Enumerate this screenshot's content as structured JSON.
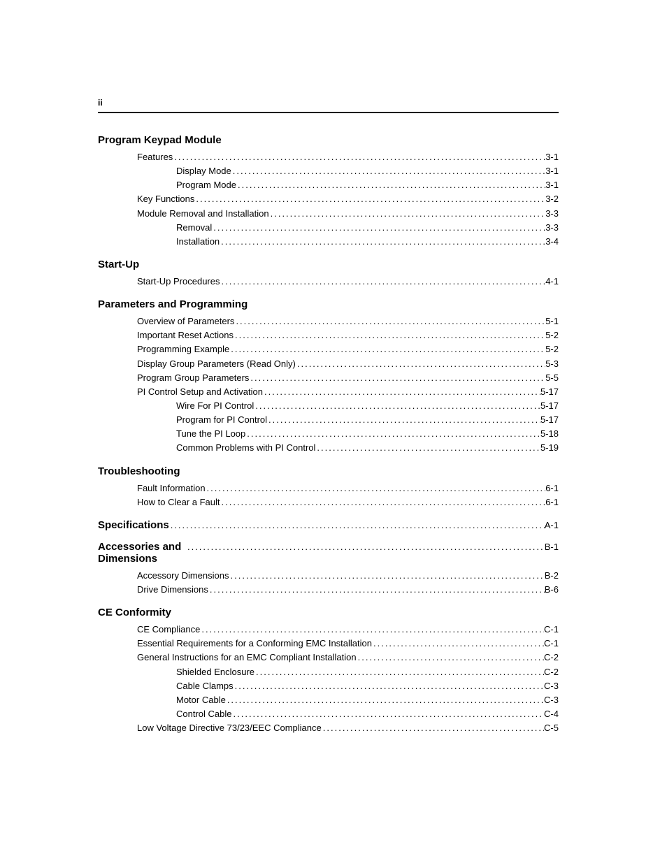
{
  "page_number": "ii",
  "dot_char": ".",
  "dot_repeat": 150,
  "sections": [
    {
      "heading": "Program Keypad Module",
      "heading_page": null,
      "entries": [
        {
          "level": 1,
          "label": "Features",
          "page": "3-1"
        },
        {
          "level": 2,
          "label": "Display Mode",
          "page": "3-1"
        },
        {
          "level": 2,
          "label": "Program Mode",
          "page": "3-1"
        },
        {
          "level": 1,
          "label": "Key Functions",
          "page": "3-2"
        },
        {
          "level": 1,
          "label": "Module Removal and Installation",
          "page": "3-3"
        },
        {
          "level": 2,
          "label": "Removal",
          "page": "3-3"
        },
        {
          "level": 2,
          "label": "Installation",
          "page": "3-4"
        }
      ]
    },
    {
      "heading": "Start-Up",
      "heading_page": null,
      "entries": [
        {
          "level": 1,
          "label": "Start-Up Procedures",
          "page": "4-1"
        }
      ]
    },
    {
      "heading": "Parameters and Programming",
      "heading_page": null,
      "entries": [
        {
          "level": 1,
          "label": "Overview of Parameters",
          "page": "5-1"
        },
        {
          "level": 1,
          "label": "Important Reset Actions",
          "page": "5-2"
        },
        {
          "level": 1,
          "label": "Programming Example",
          "page": "5-2"
        },
        {
          "level": 1,
          "label": "Display Group Parameters (Read Only)",
          "page": "5-3"
        },
        {
          "level": 1,
          "label": "Program Group Parameters",
          "page": "5-5"
        },
        {
          "level": 1,
          "label": "PI Control Setup and Activation",
          "page": "5-17"
        },
        {
          "level": 2,
          "label": "Wire For PI Control",
          "page": "5-17"
        },
        {
          "level": 2,
          "label": "Program for PI Control",
          "page": "5-17"
        },
        {
          "level": 2,
          "label": "Tune the PI Loop",
          "page": "5-18"
        },
        {
          "level": 2,
          "label": "Common Problems with PI Control",
          "page": "5-19"
        }
      ]
    },
    {
      "heading": "Troubleshooting",
      "heading_page": null,
      "entries": [
        {
          "level": 1,
          "label": "Fault Information",
          "page": "6-1"
        },
        {
          "level": 1,
          "label": "How to Clear a Fault",
          "page": "6-1"
        }
      ]
    },
    {
      "heading": "Specifications",
      "heading_page": "A-1",
      "entries": []
    },
    {
      "heading": "Accessories and Dimensions",
      "heading_page": "B-1",
      "entries": [
        {
          "level": 1,
          "label": "Accessory Dimensions",
          "page": "B-2"
        },
        {
          "level": 1,
          "label": "Drive Dimensions",
          "page": "B-6"
        }
      ]
    },
    {
      "heading": "CE Conformity",
      "heading_page": null,
      "entries": [
        {
          "level": 1,
          "label": "CE Compliance",
          "page": "C-1"
        },
        {
          "level": 1,
          "label": "Essential Requirements for a Conforming EMC Installation",
          "page": "C-1"
        },
        {
          "level": 1,
          "label": "General Instructions for an EMC Compliant Installation",
          "page": "C-2"
        },
        {
          "level": 2,
          "label": "Shielded Enclosure",
          "page": "C-2"
        },
        {
          "level": 2,
          "label": "Cable Clamps",
          "page": "C-3"
        },
        {
          "level": 2,
          "label": "Motor Cable",
          "page": "C-3"
        },
        {
          "level": 2,
          "label": "Control Cable",
          "page": "C-4"
        },
        {
          "level": 1,
          "label": "Low Voltage Directive 73/23/EEC Compliance",
          "page": "C-5"
        }
      ]
    }
  ]
}
